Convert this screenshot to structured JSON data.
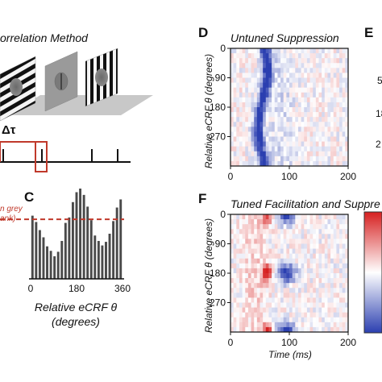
{
  "panel_a": {
    "title": "orrelation Method",
    "delta_label": "Δτ"
  },
  "chart_data": [
    {
      "panel": "C",
      "type": "bar",
      "xlabel_line1": "Relative eCRF θ",
      "xlabel_line2": "(degrees)",
      "x_ticks": [
        "0",
        "180",
        "360"
      ],
      "xlim": [
        0,
        360
      ],
      "values": [
        0.7,
        0.63,
        0.54,
        0.46,
        0.36,
        0.31,
        0.25,
        0.3,
        0.42,
        0.62,
        0.68,
        0.85,
        0.96,
        1.0,
        0.93,
        0.8,
        0.65,
        0.48,
        0.42,
        0.37,
        0.41,
        0.5,
        0.64,
        0.79,
        0.88
      ],
      "baseline_label_line1": "n grey",
      "baseline_label_line2": "ank)",
      "baseline_value": 0.66,
      "bar_color": "#4a4a4a",
      "baseline_color": "#c0392b"
    },
    {
      "panel": "D",
      "type": "heatmap",
      "title": "Untuned Suppression",
      "ylabel": "Relative eCRF θ (degrees)",
      "y_ticks": [
        "0",
        "90",
        "180",
        "270"
      ],
      "x_ticks": [
        "0",
        "100",
        "200"
      ],
      "xlim": [
        0,
        200
      ],
      "ylim": [
        0,
        360
      ]
    },
    {
      "panel": "F",
      "type": "heatmap",
      "title": "Tuned Facilitation and Suppre",
      "ylabel": "Relative eCRF θ (degrees)",
      "xlabel": "Time (ms)",
      "y_ticks": [
        "0",
        "90",
        "180",
        "270"
      ],
      "x_ticks": [
        "0",
        "100",
        "200"
      ],
      "xlim": [
        0,
        200
      ],
      "ylim": [
        0,
        360
      ],
      "colormap": [
        "#2b3fb0",
        "#ffffff",
        "#d62020"
      ]
    }
  ],
  "panel_e": {
    "tick_labels": [
      "5",
      "18",
      "2"
    ]
  },
  "panel_letters": {
    "c": "C",
    "d": "D",
    "e": "E",
    "f": "F"
  }
}
